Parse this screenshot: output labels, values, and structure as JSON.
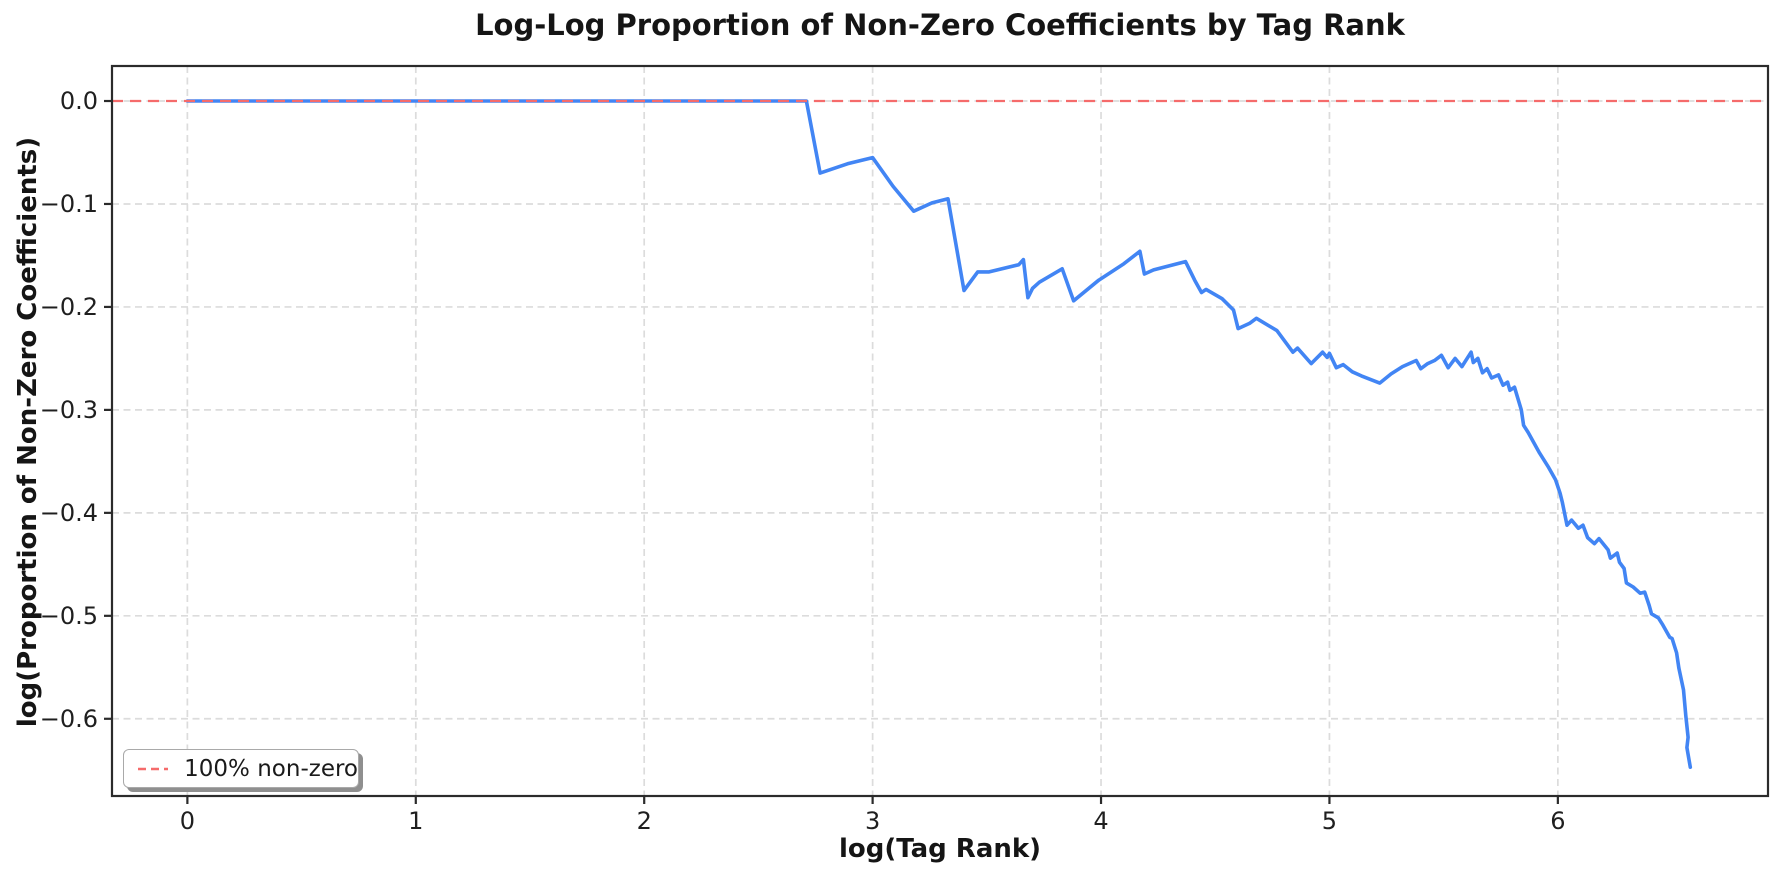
{
  "figure": {
    "title": "Log-Log Proportion of Non-Zero Coefficients by Tag Rank",
    "xlabel": "log(Tag Rank)",
    "ylabel": "log(Proportion of Non-Zero Coefficients)"
  },
  "legend": {
    "entries": [
      {
        "label": "100% non-zero",
        "color": "#f56b6b",
        "style": "dashed"
      }
    ]
  },
  "colors": {
    "series_line": "#4285f4",
    "reference_line": "#f56b6b",
    "grid": "#dcdcdc",
    "frame": "#2b2b2b",
    "text": "#1f1f1f"
  },
  "chart_data": {
    "type": "line",
    "title": "Log-Log Proportion of Non-Zero Coefficients by Tag Rank",
    "xlabel": "log(Tag Rank)",
    "ylabel": "log(Proportion of Non-Zero Coefficients)",
    "xlim": [
      -0.33,
      6.92
    ],
    "ylim": [
      -0.675,
      0.034
    ],
    "x_ticks": [
      0,
      1,
      2,
      3,
      4,
      5,
      6
    ],
    "x_tick_labels": [
      "0",
      "1",
      "2",
      "3",
      "4",
      "5",
      "6"
    ],
    "y_ticks": [
      0.0,
      -0.1,
      -0.2,
      -0.3,
      -0.4,
      -0.5,
      -0.6
    ],
    "y_tick_labels": [
      "0.0",
      "−0.1",
      "−0.2",
      "−0.3",
      "−0.4",
      "−0.5",
      "−0.6"
    ],
    "grid": true,
    "grid_style": "dashed",
    "legend_position": "lower left",
    "reference_line": {
      "y": 0.0,
      "label": "100% non-zero",
      "color": "#f56b6b",
      "style": "dashed"
    },
    "series": [
      {
        "name": "log(Proportion of Non-Zero Coefficients)",
        "color": "#4285f4",
        "points": [
          [
            0.0,
            0.0
          ],
          [
            2.71,
            0.0
          ],
          [
            2.77,
            -0.07
          ],
          [
            2.89,
            -0.061
          ],
          [
            3.0,
            -0.055
          ],
          [
            3.09,
            -0.083
          ],
          [
            3.18,
            -0.107
          ],
          [
            3.26,
            -0.099
          ],
          [
            3.33,
            -0.095
          ],
          [
            3.4,
            -0.184
          ],
          [
            3.46,
            -0.166
          ],
          [
            3.51,
            -0.166
          ],
          [
            3.64,
            -0.159
          ],
          [
            3.66,
            -0.154
          ],
          [
            3.68,
            -0.191
          ],
          [
            3.7,
            -0.182
          ],
          [
            3.73,
            -0.176
          ],
          [
            3.83,
            -0.163
          ],
          [
            3.88,
            -0.194
          ],
          [
            3.99,
            -0.174
          ],
          [
            4.1,
            -0.158
          ],
          [
            4.17,
            -0.146
          ],
          [
            4.19,
            -0.168
          ],
          [
            4.23,
            -0.164
          ],
          [
            4.37,
            -0.156
          ],
          [
            4.41,
            -0.174
          ],
          [
            4.44,
            -0.186
          ],
          [
            4.46,
            -0.183
          ],
          [
            4.53,
            -0.192
          ],
          [
            4.58,
            -0.203
          ],
          [
            4.6,
            -0.221
          ],
          [
            4.65,
            -0.216
          ],
          [
            4.68,
            -0.211
          ],
          [
            4.77,
            -0.223
          ],
          [
            4.84,
            -0.244
          ],
          [
            4.86,
            -0.24
          ],
          [
            4.92,
            -0.255
          ],
          [
            4.97,
            -0.244
          ],
          [
            4.99,
            -0.249
          ],
          [
            5.0,
            -0.245
          ],
          [
            5.03,
            -0.259
          ],
          [
            5.06,
            -0.256
          ],
          [
            5.1,
            -0.263
          ],
          [
            5.14,
            -0.267
          ],
          [
            5.22,
            -0.274
          ],
          [
            5.27,
            -0.265
          ],
          [
            5.32,
            -0.258
          ],
          [
            5.38,
            -0.252
          ],
          [
            5.4,
            -0.26
          ],
          [
            5.43,
            -0.255
          ],
          [
            5.46,
            -0.252
          ],
          [
            5.49,
            -0.247
          ],
          [
            5.52,
            -0.259
          ],
          [
            5.55,
            -0.25
          ],
          [
            5.58,
            -0.258
          ],
          [
            5.62,
            -0.244
          ],
          [
            5.63,
            -0.254
          ],
          [
            5.65,
            -0.25
          ],
          [
            5.67,
            -0.264
          ],
          [
            5.69,
            -0.26
          ],
          [
            5.71,
            -0.269
          ],
          [
            5.74,
            -0.266
          ],
          [
            5.76,
            -0.276
          ],
          [
            5.78,
            -0.273
          ],
          [
            5.79,
            -0.281
          ],
          [
            5.81,
            -0.278
          ],
          [
            5.84,
            -0.3
          ],
          [
            5.85,
            -0.315
          ],
          [
            5.87,
            -0.322
          ],
          [
            5.91,
            -0.338
          ],
          [
            5.92,
            -0.342
          ],
          [
            5.96,
            -0.356
          ],
          [
            5.99,
            -0.368
          ],
          [
            6.01,
            -0.381
          ],
          [
            6.02,
            -0.39
          ],
          [
            6.04,
            -0.412
          ],
          [
            6.06,
            -0.407
          ],
          [
            6.09,
            -0.415
          ],
          [
            6.11,
            -0.412
          ],
          [
            6.13,
            -0.424
          ],
          [
            6.16,
            -0.43
          ],
          [
            6.18,
            -0.425
          ],
          [
            6.22,
            -0.436
          ],
          [
            6.23,
            -0.444
          ],
          [
            6.26,
            -0.439
          ],
          [
            6.27,
            -0.448
          ],
          [
            6.29,
            -0.454
          ],
          [
            6.3,
            -0.468
          ],
          [
            6.33,
            -0.472
          ],
          [
            6.36,
            -0.478
          ],
          [
            6.38,
            -0.477
          ],
          [
            6.4,
            -0.49
          ],
          [
            6.41,
            -0.498
          ],
          [
            6.44,
            -0.502
          ],
          [
            6.46,
            -0.509
          ],
          [
            6.49,
            -0.521
          ],
          [
            6.5,
            -0.522
          ],
          [
            6.52,
            -0.536
          ],
          [
            6.53,
            -0.551
          ],
          [
            6.55,
            -0.572
          ],
          [
            6.56,
            -0.597
          ],
          [
            6.57,
            -0.618
          ],
          [
            6.565,
            -0.628
          ],
          [
            6.58,
            -0.647
          ]
        ]
      }
    ]
  }
}
